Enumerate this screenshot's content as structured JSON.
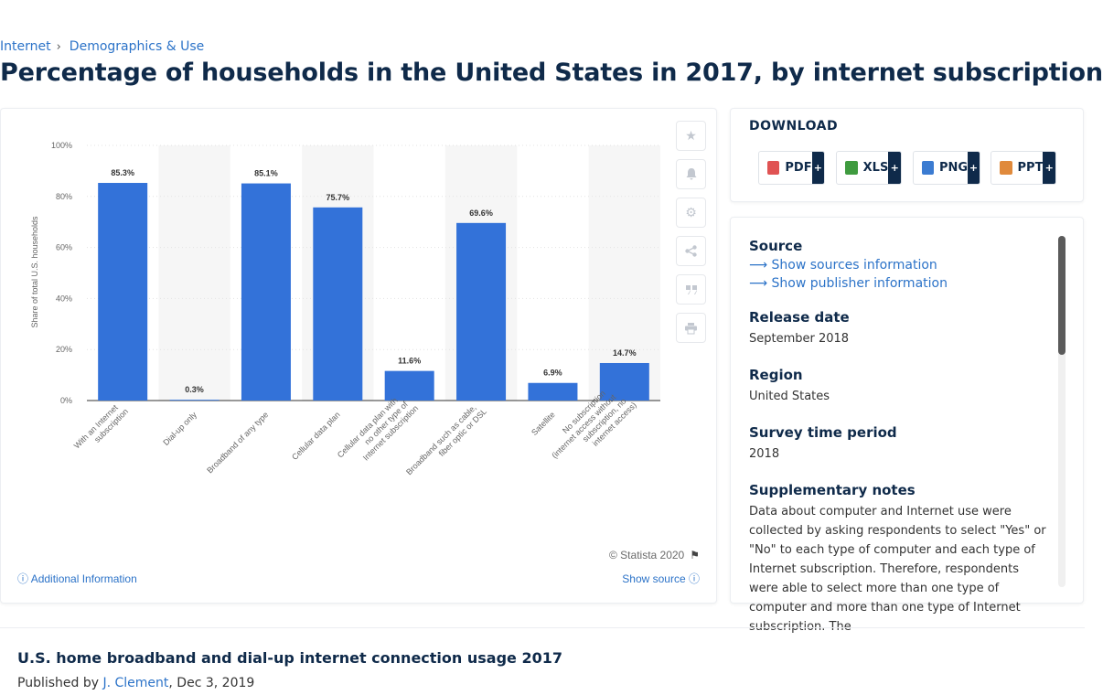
{
  "breadcrumb": {
    "item1": "Internet",
    "item2": "Demographics & Use"
  },
  "page_title": "Percentage of households in the United States in 2017, by internet subscription",
  "chart_data": {
    "type": "bar",
    "title": "",
    "xlabel": "",
    "ylabel": "Share of total U.S. households",
    "ylim": [
      0,
      100
    ],
    "yticks": [
      "0%",
      "20%",
      "40%",
      "60%",
      "80%",
      "100%"
    ],
    "categories": [
      "With an Internet subscription",
      "Dial-up only",
      "Broadband of any type",
      "Cellular data plan",
      "Cellular data plan with no other type of Internet subscription",
      "Broadband such as cable, fiber optic or DSL",
      "Satellite",
      "No subscription (internet access without subscription, no internet access)"
    ],
    "values": [
      85.3,
      0.3,
      85.1,
      75.7,
      11.6,
      69.6,
      6.9,
      14.7
    ],
    "value_labels": [
      "85.3%",
      "0.3%",
      "85.1%",
      "75.7%",
      "11.6%",
      "69.6%",
      "6.9%",
      "14.7%"
    ],
    "bar_color": "#3372d9",
    "grid": true,
    "legend": "none"
  },
  "chart_footer": {
    "copyright": "© Statista 2020",
    "additional_info": "Additional Information",
    "show_source": "Show source"
  },
  "download": {
    "title": "DOWNLOAD",
    "formats": [
      {
        "label": "PDF",
        "color": "#e05353"
      },
      {
        "label": "XLS",
        "color": "#3f9b3f"
      },
      {
        "label": "PNG",
        "color": "#3b7bd1"
      },
      {
        "label": "PPT",
        "color": "#e08a3c"
      }
    ],
    "plus": "+"
  },
  "info": {
    "source_label": "Source",
    "show_sources": "Show sources information",
    "show_publisher": "Show publisher information",
    "release_label": "Release date",
    "release_value": "September 2018",
    "region_label": "Region",
    "region_value": "United States",
    "survey_label": "Survey time period",
    "survey_value": "2018",
    "notes_label": "Supplementary notes",
    "notes_value": "Data about computer and Internet use were collected by asking respondents to select \"Yes\" or \"No\" to each type of computer and each type of Internet subscription. Therefore, respondents were able to select more than one type of computer and more than one type of Internet subscription. The"
  },
  "related": {
    "title": "U.S. home broadband and dial-up internet connection usage 2017",
    "published_by": "Published by ",
    "author": "J. Clement",
    "date": ", Dec 3, 2019"
  }
}
